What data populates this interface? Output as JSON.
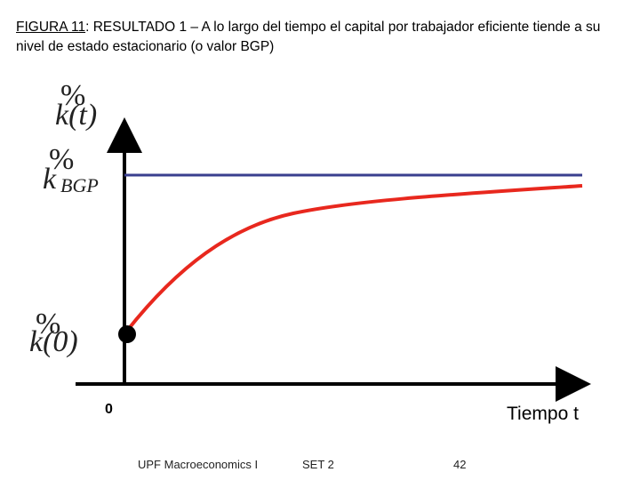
{
  "header": {
    "figure_label": "FIGURA 11",
    "title": ": RESULTADO 1 – A lo largo del tiempo el capital por trabajador eficiente tiende a su nivel de estado estacionario (o valor BGP)"
  },
  "diagram": {
    "y_axis_label": {
      "mark": "%",
      "text": "k(t)"
    },
    "bgp_label": {
      "mark": "%",
      "text": "k",
      "subscript": "BGP"
    },
    "start_label": {
      "mark": "%",
      "text": "k(0)"
    },
    "origin_label": "0",
    "x_axis_label": "Tiempo t"
  },
  "footer": {
    "course": "UPF Macroeconomics I",
    "set": "SET 2",
    "page": "42"
  }
}
